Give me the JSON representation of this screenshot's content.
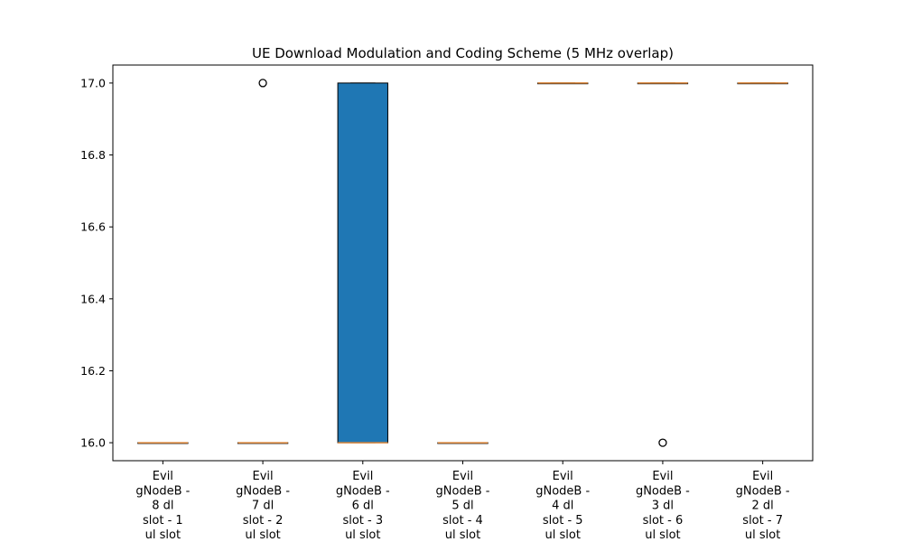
{
  "chart_data": {
    "type": "box",
    "title": "UE Download Modulation and Coding Scheme (5 MHz overlap)",
    "xlabel": "",
    "ylabel": "",
    "ylim": [
      15.95,
      17.05
    ],
    "yticks": [
      "16.0",
      "16.2",
      "16.4",
      "16.6",
      "16.8",
      "17.0"
    ],
    "grid": false,
    "categories": [
      [
        "Evil",
        "gNodeB -",
        "8 dl",
        "slot - 1",
        "ul slot"
      ],
      [
        "Evil",
        "gNodeB -",
        "7 dl",
        "slot - 2",
        "ul slot"
      ],
      [
        "Evil",
        "gNodeB -",
        "6 dl",
        "slot - 3",
        "ul slot"
      ],
      [
        "Evil",
        "gNodeB -",
        "5 dl",
        "slot - 4",
        "ul slot"
      ],
      [
        "Evil",
        "gNodeB -",
        "4 dl",
        "slot - 5",
        "ul slot"
      ],
      [
        "Evil",
        "gNodeB -",
        "3 dl",
        "slot - 6",
        "ul slot"
      ],
      [
        "Evil",
        "gNodeB -",
        "2 dl",
        "slot - 7",
        "ul slot"
      ]
    ],
    "boxes": [
      {
        "q1": 16.0,
        "median": 16.0,
        "q3": 16.0,
        "whisker_low": 16.0,
        "whisker_high": 16.0,
        "outliers": []
      },
      {
        "q1": 16.0,
        "median": 16.0,
        "q3": 16.0,
        "whisker_low": 16.0,
        "whisker_high": 16.0,
        "outliers": [
          17.0
        ]
      },
      {
        "q1": 16.0,
        "median": 16.0,
        "q3": 17.0,
        "whisker_low": 16.0,
        "whisker_high": 17.0,
        "outliers": []
      },
      {
        "q1": 16.0,
        "median": 16.0,
        "q3": 16.0,
        "whisker_low": 16.0,
        "whisker_high": 16.0,
        "outliers": []
      },
      {
        "q1": 17.0,
        "median": 17.0,
        "q3": 17.0,
        "whisker_low": 17.0,
        "whisker_high": 17.0,
        "outliers": []
      },
      {
        "q1": 17.0,
        "median": 17.0,
        "q3": 17.0,
        "whisker_low": 17.0,
        "whisker_high": 17.0,
        "outliers": [
          16.0
        ]
      },
      {
        "q1": 17.0,
        "median": 17.0,
        "q3": 17.0,
        "whisker_low": 17.0,
        "whisker_high": 17.0,
        "outliers": []
      }
    ],
    "colors": {
      "box_fill": "#1f77b4",
      "box_edge": "#000000",
      "median": "#e08a3c",
      "axes": "#000000"
    }
  }
}
